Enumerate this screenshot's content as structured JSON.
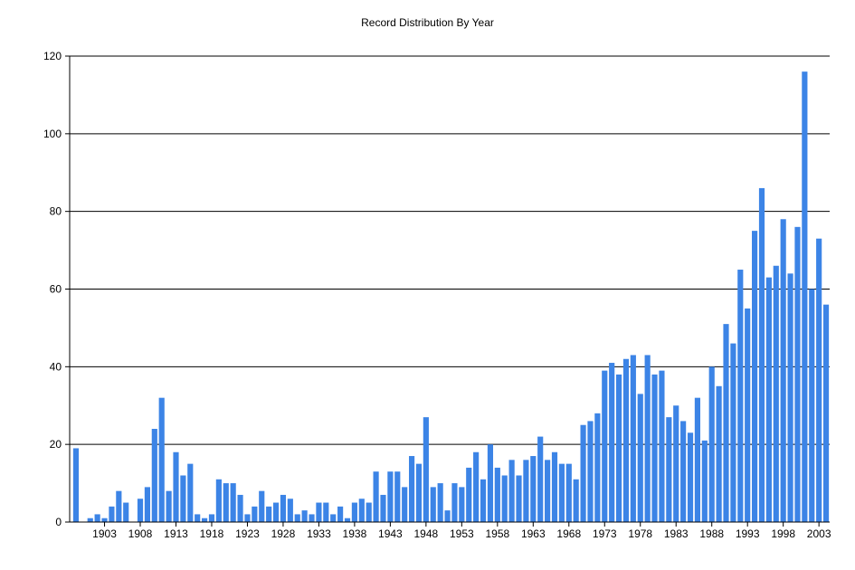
{
  "chart_data": {
    "type": "bar",
    "title": "Record Distribution By Year",
    "xlabel": "",
    "ylabel": "",
    "ylim": [
      0,
      120
    ],
    "y_ticks": [
      0,
      20,
      40,
      60,
      80,
      100,
      120
    ],
    "x_tick_labels": [
      "1903",
      "1908",
      "1913",
      "1918",
      "1923",
      "1928",
      "1933",
      "1938",
      "1943",
      "1948",
      "1953",
      "1958",
      "1963",
      "1968",
      "1973",
      "1978",
      "1983",
      "1988",
      "1993",
      "1998",
      "2003"
    ],
    "grid": "horizontal",
    "legend": "none",
    "bar_color": "#3c84e6",
    "categories": [
      1899,
      1900,
      1901,
      1902,
      1903,
      1904,
      1905,
      1906,
      1907,
      1908,
      1909,
      1910,
      1911,
      1912,
      1913,
      1914,
      1915,
      1916,
      1917,
      1918,
      1919,
      1920,
      1921,
      1922,
      1923,
      1924,
      1925,
      1926,
      1927,
      1928,
      1929,
      1930,
      1931,
      1932,
      1933,
      1934,
      1935,
      1936,
      1937,
      1938,
      1939,
      1940,
      1941,
      1942,
      1943,
      1944,
      1945,
      1946,
      1947,
      1948,
      1949,
      1950,
      1951,
      1952,
      1953,
      1954,
      1955,
      1956,
      1957,
      1958,
      1959,
      1960,
      1961,
      1962,
      1963,
      1964,
      1965,
      1966,
      1967,
      1968,
      1969,
      1970,
      1971,
      1972,
      1973,
      1974,
      1975,
      1976,
      1977,
      1978,
      1979,
      1980,
      1981,
      1982,
      1983,
      1984,
      1985,
      1986,
      1987,
      1988,
      1989,
      1990,
      1991,
      1992,
      1993,
      1994,
      1995,
      1996,
      1997,
      1998,
      1999,
      2000,
      2001,
      2002,
      2003,
      2004
    ],
    "values": [
      19,
      0,
      1,
      2,
      1,
      4,
      8,
      5,
      0,
      6,
      9,
      24,
      32,
      8,
      18,
      12,
      15,
      2,
      1,
      2,
      11,
      10,
      10,
      7,
      2,
      4,
      8,
      4,
      5,
      7,
      6,
      2,
      3,
      2,
      5,
      5,
      2,
      4,
      1,
      5,
      6,
      5,
      13,
      7,
      13,
      13,
      9,
      17,
      15,
      27,
      9,
      10,
      3,
      10,
      9,
      14,
      18,
      11,
      20,
      14,
      12,
      16,
      12,
      16,
      17,
      22,
      16,
      18,
      15,
      15,
      11,
      25,
      26,
      28,
      39,
      41,
      38,
      42,
      43,
      33,
      43,
      38,
      39,
      27,
      30,
      26,
      23,
      32,
      21,
      40,
      35,
      51,
      46,
      65,
      55,
      75,
      86,
      63,
      66,
      78,
      64,
      76,
      116,
      60,
      73,
      56
    ]
  }
}
